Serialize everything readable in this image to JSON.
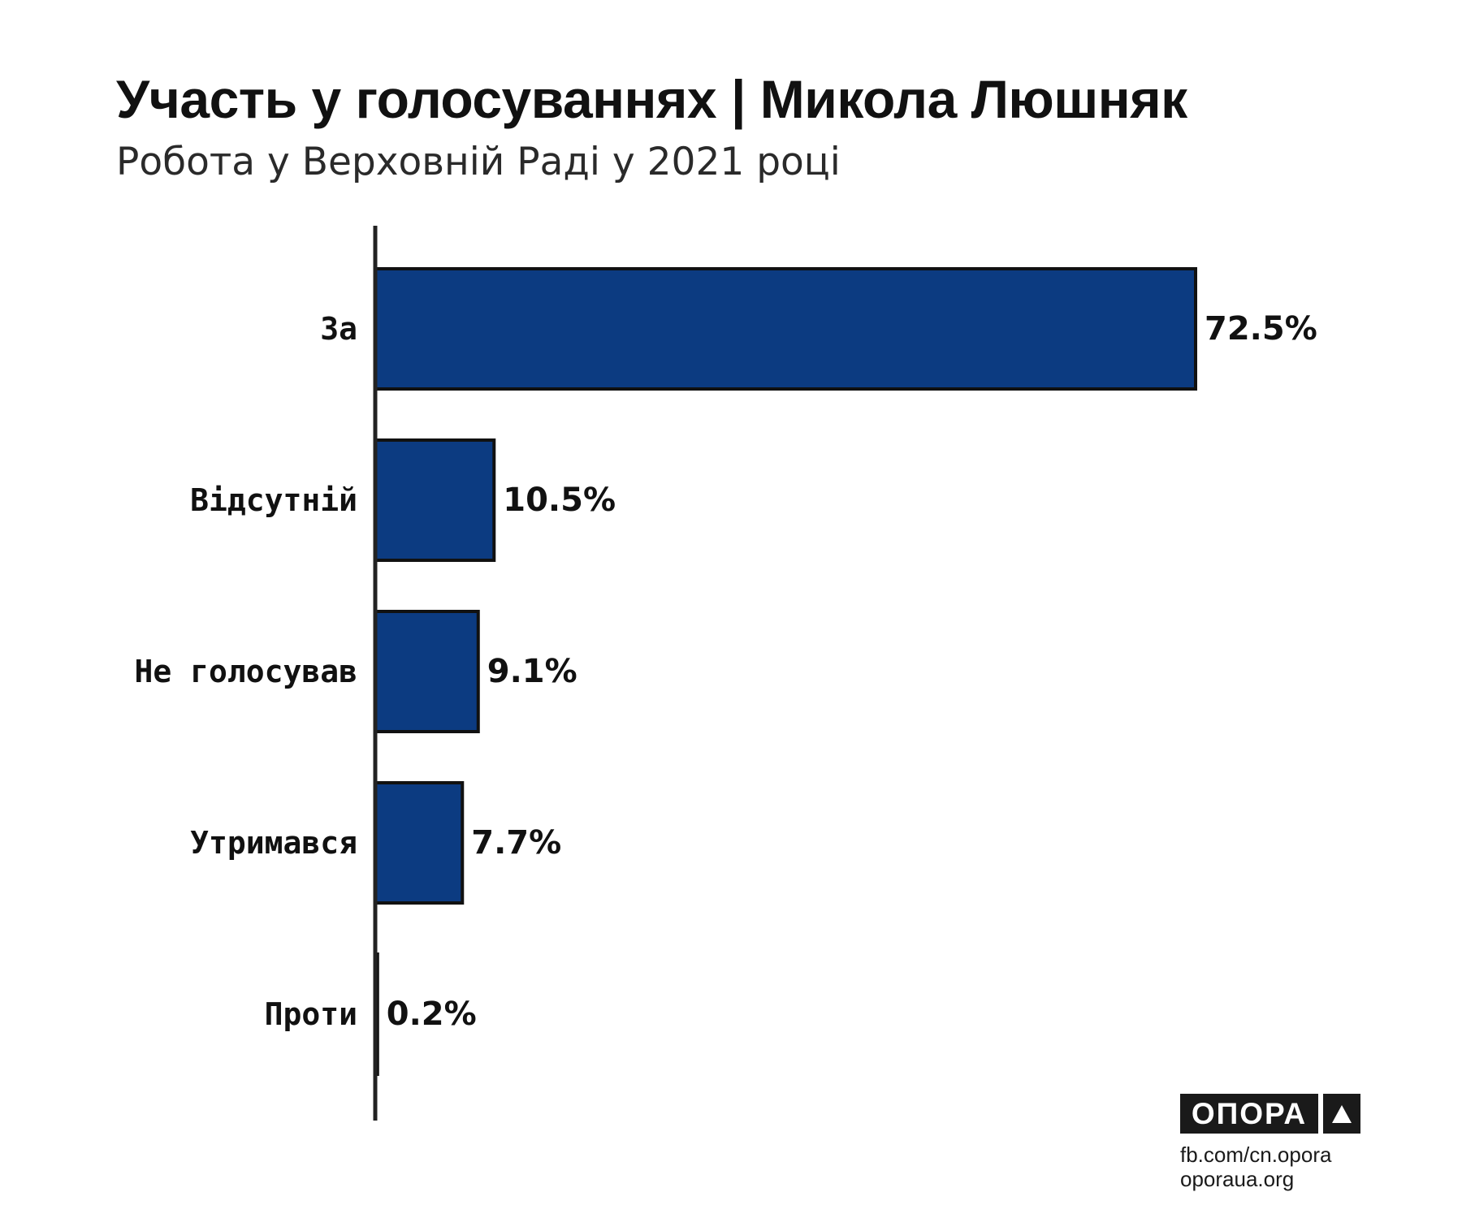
{
  "header": {
    "title": "Участь у голосуваннях | Микола Люшняк",
    "subtitle": "Робота у Верховній Раді у 2021 році"
  },
  "chart_data": {
    "type": "bar",
    "orientation": "horizontal",
    "categories": [
      "За",
      "Відсутній",
      "Не голосував",
      "Утримався",
      "Проти"
    ],
    "values": [
      72.5,
      10.5,
      9.1,
      7.7,
      0.2
    ],
    "value_labels": [
      "72.5%",
      "10.5%",
      "9.1%",
      "7.7%",
      "0.2%"
    ],
    "title": "Участь у голосуваннях | Микола Люшняк",
    "subtitle": "Робота у Верховній Раді у 2021 році",
    "xlabel": "",
    "ylabel": "",
    "xlim": [
      0,
      72.5
    ],
    "grid": false,
    "bar_color": "#0c3b81",
    "bar_edge_color": "#111111"
  },
  "branding": {
    "logo_text": "ОПОРА",
    "logo_icon": "triangle-up-icon",
    "links": [
      "fb.com/cn.opora",
      "oporaua.org"
    ]
  },
  "colors": {
    "bar": "#0c3b81",
    "text": "#111111",
    "axis": "#222222",
    "logo_bg": "#1a1a1a"
  }
}
